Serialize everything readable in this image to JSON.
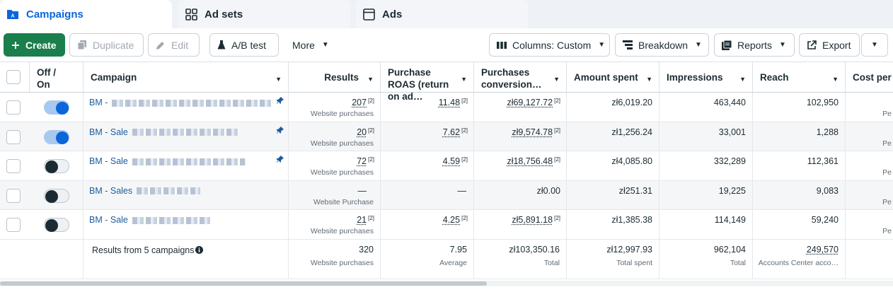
{
  "tabs": [
    {
      "label": "Campaigns"
    },
    {
      "label": "Ad sets"
    },
    {
      "label": "Ads"
    }
  ],
  "toolbar": {
    "create": "Create",
    "duplicate": "Duplicate",
    "edit": "Edit",
    "ab_test": "A/B test",
    "more": "More",
    "columns": "Columns: Custom",
    "breakdown": "Breakdown",
    "reports": "Reports",
    "export": "Export"
  },
  "columns": {
    "toggle": "Off /\nOn",
    "campaign": "Campaign",
    "results": "Results",
    "roas": "Purchase ROAS (return on ad…",
    "purchases": "Purchases conversion…",
    "spent": "Amount spent",
    "impressions": "Impressions",
    "reach": "Reach",
    "cost": "Cost per"
  },
  "rows": [
    {
      "on": true,
      "name": "BM -",
      "pinned": true,
      "results": "207",
      "results_sub": "Website purchases",
      "roas": "11.48",
      "purchases": "zł69,127.72",
      "spent": "zł6,019.20",
      "impressions": "463,440",
      "reach": "102,950",
      "cost_sub": "Pe"
    },
    {
      "on": true,
      "name": "BM - Sale",
      "pinned": true,
      "results": "20",
      "results_sub": "Website purchases",
      "roas": "7.62",
      "purchases": "zł9,574.78",
      "spent": "zł1,256.24",
      "impressions": "33,001",
      "reach": "1,288",
      "cost_sub": "Pe"
    },
    {
      "on": false,
      "name": "BM - Sale",
      "pinned": true,
      "results": "72",
      "results_sub": "Website purchases",
      "roas": "4.59",
      "purchases": "zł18,756.48",
      "spent": "zł4,085.80",
      "impressions": "332,289",
      "reach": "112,361",
      "cost_sub": "Pe"
    },
    {
      "on": false,
      "name": "BM - Sales",
      "pinned": false,
      "results": "—",
      "results_sub": "Website Purchase",
      "roas": "—",
      "purchases": "zł0.00",
      "spent": "zł251.31",
      "impressions": "19,225",
      "reach": "9,083",
      "cost_sub": "Pe"
    },
    {
      "on": false,
      "name": "BM - Sale",
      "pinned": false,
      "results": "21",
      "results_sub": "Website purchases",
      "roas": "4.25",
      "purchases": "zł5,891.18",
      "spent": "zł1,385.38",
      "impressions": "114,149",
      "reach": "59,240",
      "cost_sub": "Pe"
    }
  ],
  "footnote": "[2]",
  "summary": {
    "label": "Results from 5 campaigns",
    "results": "320",
    "results_sub": "Website purchases",
    "roas": "7.95",
    "roas_sub": "Average",
    "purchases": "zł103,350.16",
    "purchases_sub": "Total",
    "spent": "zł12,997.93",
    "spent_sub": "Total spent",
    "impressions": "962,104",
    "impressions_sub": "Total",
    "reach": "249,570",
    "reach_sub": "Accounts Center acco…"
  },
  "colors": {
    "accent": "#0a66d9",
    "create": "#1a7f4c"
  }
}
